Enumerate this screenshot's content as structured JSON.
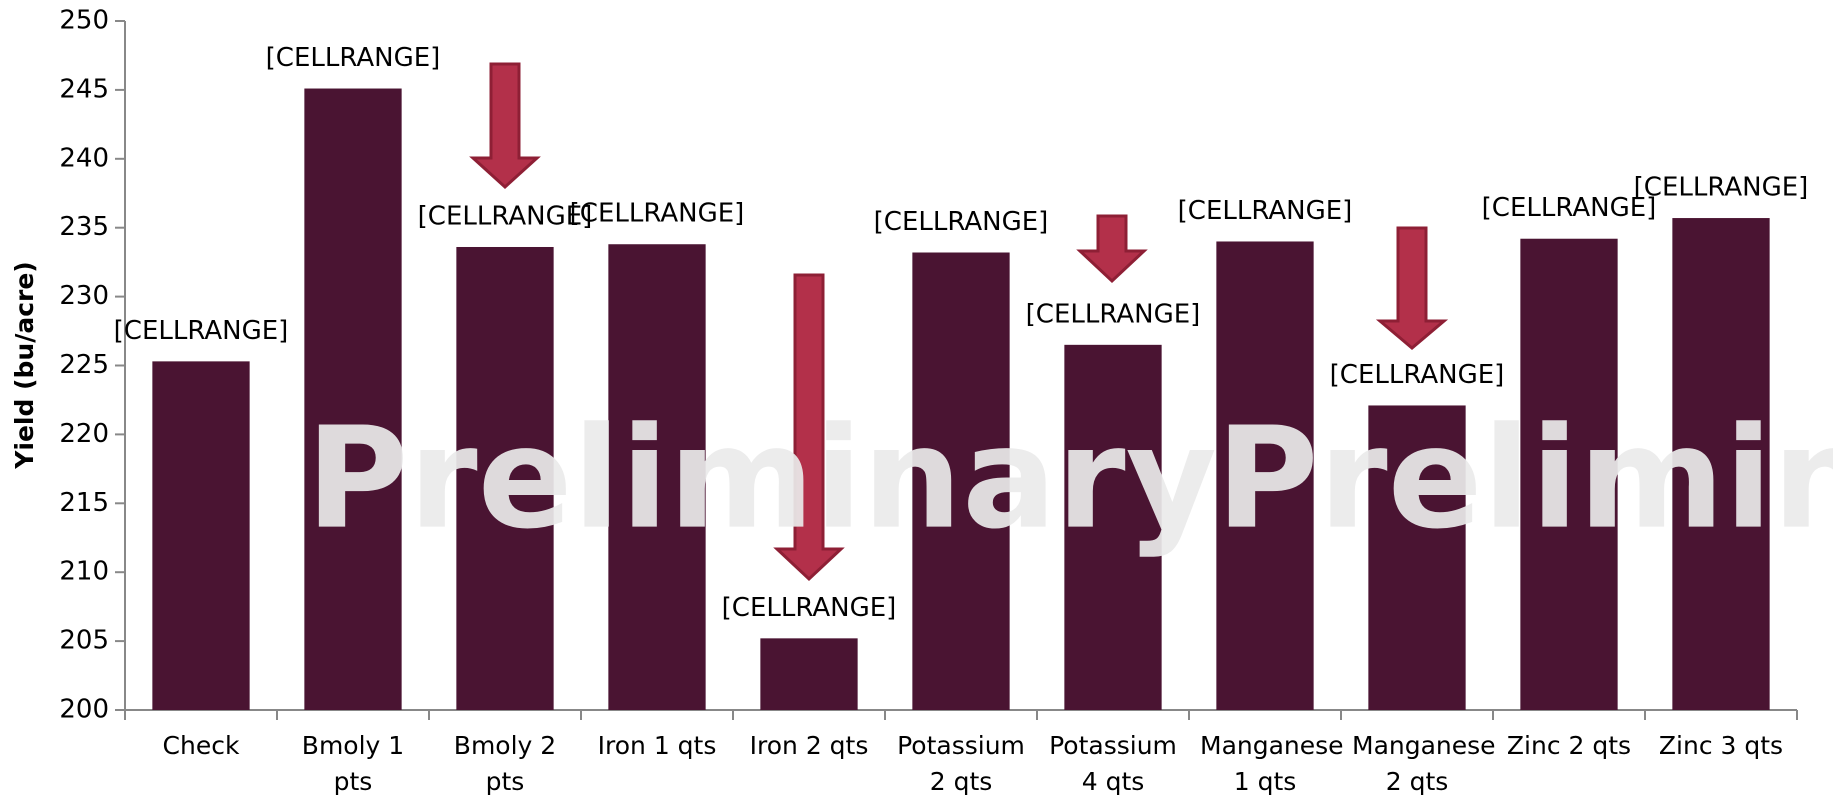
{
  "chart_data": {
    "type": "bar",
    "y_label": "Yield (bu/acre)",
    "categories": [
      "Check",
      "Bmoly 1 pts",
      "Bmoly 2 pts",
      "Iron 1 qts",
      "Iron 2 qts",
      "Potassium 2 qts",
      "Potassium 4 qts",
      "Manganese 1 qts",
      "Manganese 2 qts",
      "Zinc 2 qts",
      "Zinc 3 qts"
    ],
    "values": [
      225.3,
      245.1,
      233.6,
      233.8,
      205.2,
      233.2,
      226.5,
      234.0,
      222.1,
      234.2,
      235.7
    ],
    "value_labels": [
      "[CELLRANGE]",
      "[CELLRANGE]",
      "[CELLRANGE]",
      "[CELLRANGE]",
      "[CELLRANGE]",
      "[CELLRANGE]",
      "[CELLRANGE]",
      "[CELLRANGE]",
      "[CELLRANGE]",
      "[CELLRANGE]",
      "[CELLRANGE]"
    ],
    "color": "#4a1432",
    "ylim": [
      200,
      250
    ],
    "yticks": [
      200,
      205,
      210,
      215,
      220,
      225,
      230,
      235,
      240,
      245,
      250
    ],
    "grid": false,
    "annotations": [
      "Preliminary",
      "Preliminary"
    ]
  }
}
